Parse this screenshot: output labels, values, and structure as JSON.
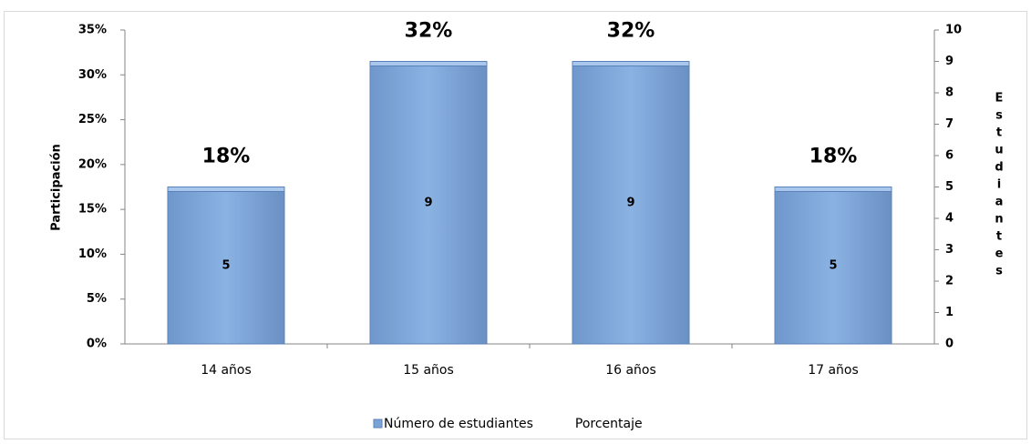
{
  "chart_data": {
    "type": "bar",
    "categories": [
      "14 años",
      "15 años",
      "16 años",
      "17 años"
    ],
    "series": [
      {
        "name": "Número de estudiantes",
        "color": "#7ba3d6",
        "axis": "y2",
        "values": [
          5,
          9,
          9,
          5
        ]
      },
      {
        "name": "Porcentaje",
        "type": "line",
        "color": "none",
        "values": [
          18,
          32,
          32,
          18
        ],
        "value_labels": [
          "18%",
          "32%",
          "32%",
          "18%"
        ]
      }
    ],
    "ylabel": "Participación",
    "y2label": "Estudiantes",
    "ylim": [
      0,
      35
    ],
    "yticks": [
      {
        "value": 0,
        "label": "0%"
      },
      {
        "value": 5,
        "label": "5%"
      },
      {
        "value": 10,
        "label": "10%"
      },
      {
        "value": 15,
        "label": "15%"
      },
      {
        "value": 20,
        "label": "20%"
      },
      {
        "value": 25,
        "label": "25%"
      },
      {
        "value": 30,
        "label": "30%"
      },
      {
        "value": 35,
        "label": "35%"
      }
    ],
    "y2lim": [
      0,
      10
    ],
    "y2ticks": [
      0,
      1,
      2,
      3,
      4,
      5,
      6,
      7,
      8,
      9,
      10
    ],
    "legend": "bottom"
  }
}
